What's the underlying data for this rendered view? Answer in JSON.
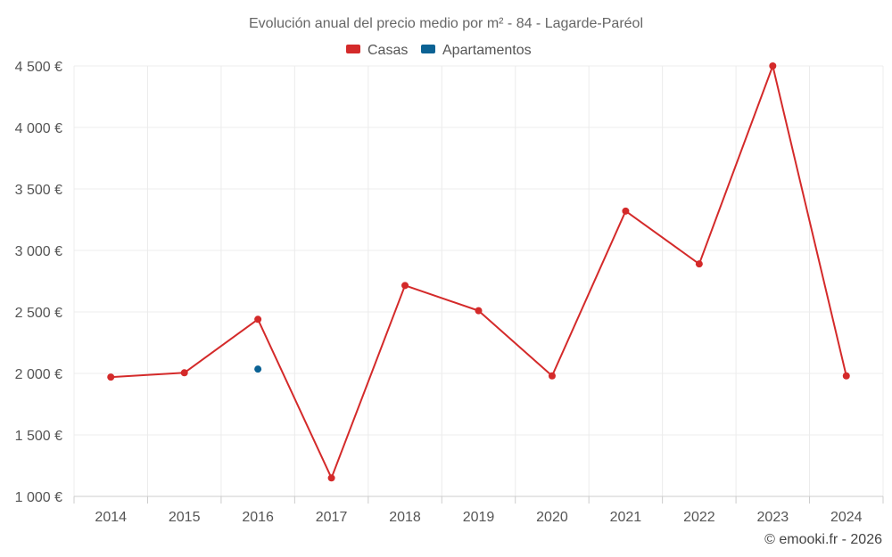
{
  "chart_data": {
    "type": "line",
    "title": "Evolución anual del precio medio por m² - 84 - Lagarde-Paréol",
    "categories": [
      "2014",
      "2015",
      "2016",
      "2017",
      "2018",
      "2019",
      "2020",
      "2021",
      "2022",
      "2023",
      "2024"
    ],
    "ylim": [
      1000,
      4500
    ],
    "yticks": [
      1000,
      1500,
      2000,
      2500,
      3000,
      3500,
      4000,
      4500
    ],
    "ytick_labels": [
      "1 000 €",
      "1 500 €",
      "2 000 €",
      "2 500 €",
      "3 000 €",
      "3 500 €",
      "4 000 €",
      "4 500 €"
    ],
    "legend_position": "top-center",
    "grid": true,
    "series": [
      {
        "name": "Casas",
        "color": "#d42a2a",
        "values": [
          1970,
          2005,
          2440,
          1150,
          2715,
          2510,
          1980,
          3320,
          2890,
          4500,
          1980
        ]
      },
      {
        "name": "Apartamentos",
        "color": "#0b6294",
        "values": [
          null,
          null,
          2035,
          null,
          null,
          null,
          null,
          null,
          null,
          null,
          null
        ]
      }
    ],
    "credit": "© emooki.fr - 2026"
  }
}
